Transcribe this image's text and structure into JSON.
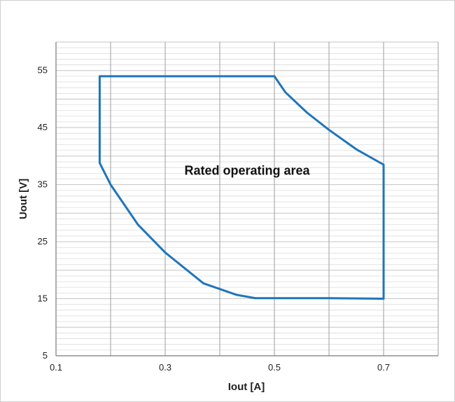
{
  "chart_data": {
    "type": "line",
    "title": "",
    "xlabel": "Iout [A]",
    "ylabel": "Uout [V]",
    "xlim": [
      0.1,
      0.8
    ],
    "ylim": [
      5,
      60
    ],
    "x_ticks": [
      0.1,
      0.3,
      0.5,
      0.7
    ],
    "x_tick_labels": [
      "0.1",
      "0.3",
      "0.5",
      "0.7"
    ],
    "y_ticks": [
      5,
      15,
      25,
      35,
      45,
      55
    ],
    "y_tick_labels": [
      "5",
      "15",
      "25",
      "35",
      "45",
      "55"
    ],
    "x_major_grid_step": 0.1,
    "y_minor_grid_step": 1,
    "y_major_grid_step": 5,
    "grid": true,
    "legend": "none",
    "annotation": {
      "text": "Rated operating area",
      "x": 0.45,
      "y": 37.5
    },
    "series": [
      {
        "color": "#1f75bb",
        "closed": true,
        "points": [
          [
            0.18,
            54.0
          ],
          [
            0.5,
            54.0
          ],
          [
            0.52,
            51.2
          ],
          [
            0.56,
            47.6
          ],
          [
            0.6,
            44.6
          ],
          [
            0.65,
            41.2
          ],
          [
            0.7,
            38.5
          ],
          [
            0.7,
            15.0
          ],
          [
            0.6,
            15.1
          ],
          [
            0.5,
            15.1
          ],
          [
            0.465,
            15.1
          ],
          [
            0.43,
            15.7
          ],
          [
            0.37,
            17.7
          ],
          [
            0.3,
            23.1
          ],
          [
            0.25,
            28.0
          ],
          [
            0.2,
            35.0
          ],
          [
            0.18,
            38.8
          ]
        ]
      }
    ]
  }
}
